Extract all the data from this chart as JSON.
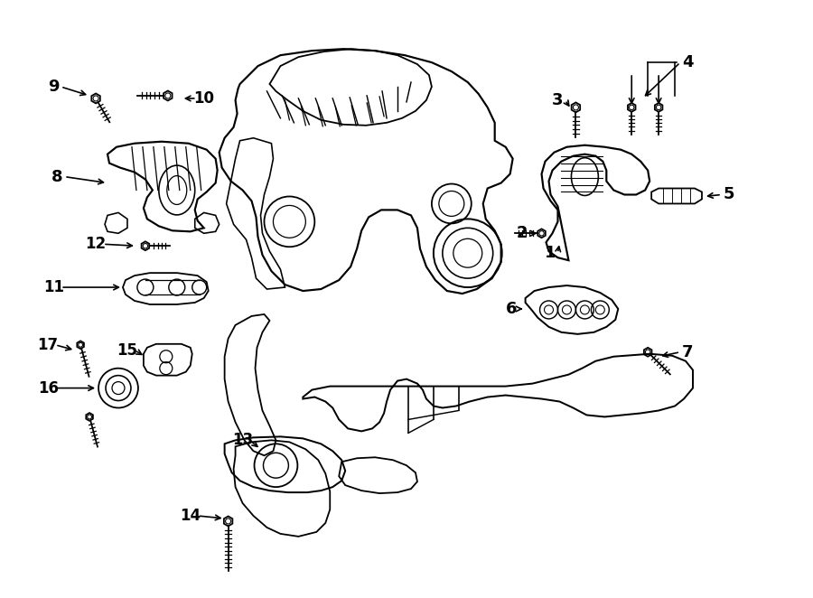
{
  "background_color": "#ffffff",
  "line_color": "#000000",
  "figure_width": 9.0,
  "figure_height": 6.62,
  "dpi": 100,
  "label_positions": {
    "1": [
      0.673,
      0.555,
      0.695,
      0.555
    ],
    "2": [
      0.655,
      0.635,
      0.676,
      0.632
    ],
    "3": [
      0.682,
      0.782,
      0.705,
      0.765
    ],
    "4": [
      0.82,
      0.87,
      0.81,
      0.84
    ],
    "5": [
      0.88,
      0.645,
      0.862,
      0.652
    ],
    "6": [
      0.622,
      0.462,
      0.643,
      0.462
    ],
    "7": [
      0.845,
      0.382,
      0.81,
      0.392
    ],
    "8": [
      0.078,
      0.7,
      0.118,
      0.7
    ],
    "9": [
      0.068,
      0.823,
      0.093,
      0.813
    ],
    "10": [
      0.215,
      0.815,
      0.192,
      0.82
    ],
    "11": [
      0.075,
      0.558,
      0.118,
      0.558
    ],
    "12": [
      0.11,
      0.62,
      0.15,
      0.618
    ],
    "13": [
      0.305,
      0.338,
      0.32,
      0.312
    ],
    "14": [
      0.218,
      0.175,
      0.245,
      0.193
    ],
    "15": [
      0.148,
      0.4,
      0.172,
      0.393
    ],
    "16": [
      0.065,
      0.342,
      0.098,
      0.348
    ],
    "17": [
      0.06,
      0.415,
      0.083,
      0.405
    ]
  }
}
